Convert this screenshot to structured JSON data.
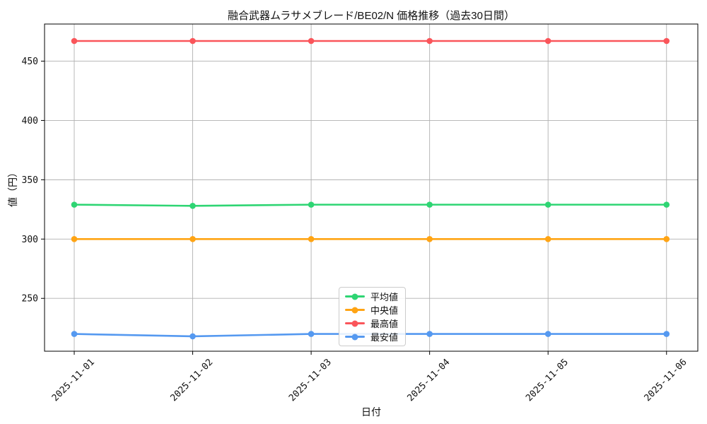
{
  "chart_data": {
    "type": "line",
    "title": "融合武器ムラサメブレード/BE02/N 価格推移（過去30日間）",
    "xlabel": "日付",
    "ylabel": "値（円）",
    "categories": [
      "2025-11-01",
      "2025-11-02",
      "2025-11-03",
      "2025-11-04",
      "2025-11-05",
      "2025-11-06"
    ],
    "y_ticks": [
      250,
      300,
      350,
      400,
      450
    ],
    "ylim": [
      205,
      480
    ],
    "grid": true,
    "legend_position": "lower center",
    "series": [
      {
        "name": "平均値",
        "color": "#2ed573",
        "values": [
          329,
          328,
          329,
          329,
          329,
          329
        ]
      },
      {
        "name": "中央値",
        "color": "#ffa414",
        "values": [
          300,
          300,
          300,
          300,
          300,
          300
        ]
      },
      {
        "name": "最高値",
        "color": "#fa555a",
        "values": [
          467,
          467,
          467,
          467,
          467,
          467
        ]
      },
      {
        "name": "最安値",
        "color": "#5599f0",
        "values": [
          220,
          218,
          220,
          220,
          220,
          220
        ]
      }
    ]
  }
}
